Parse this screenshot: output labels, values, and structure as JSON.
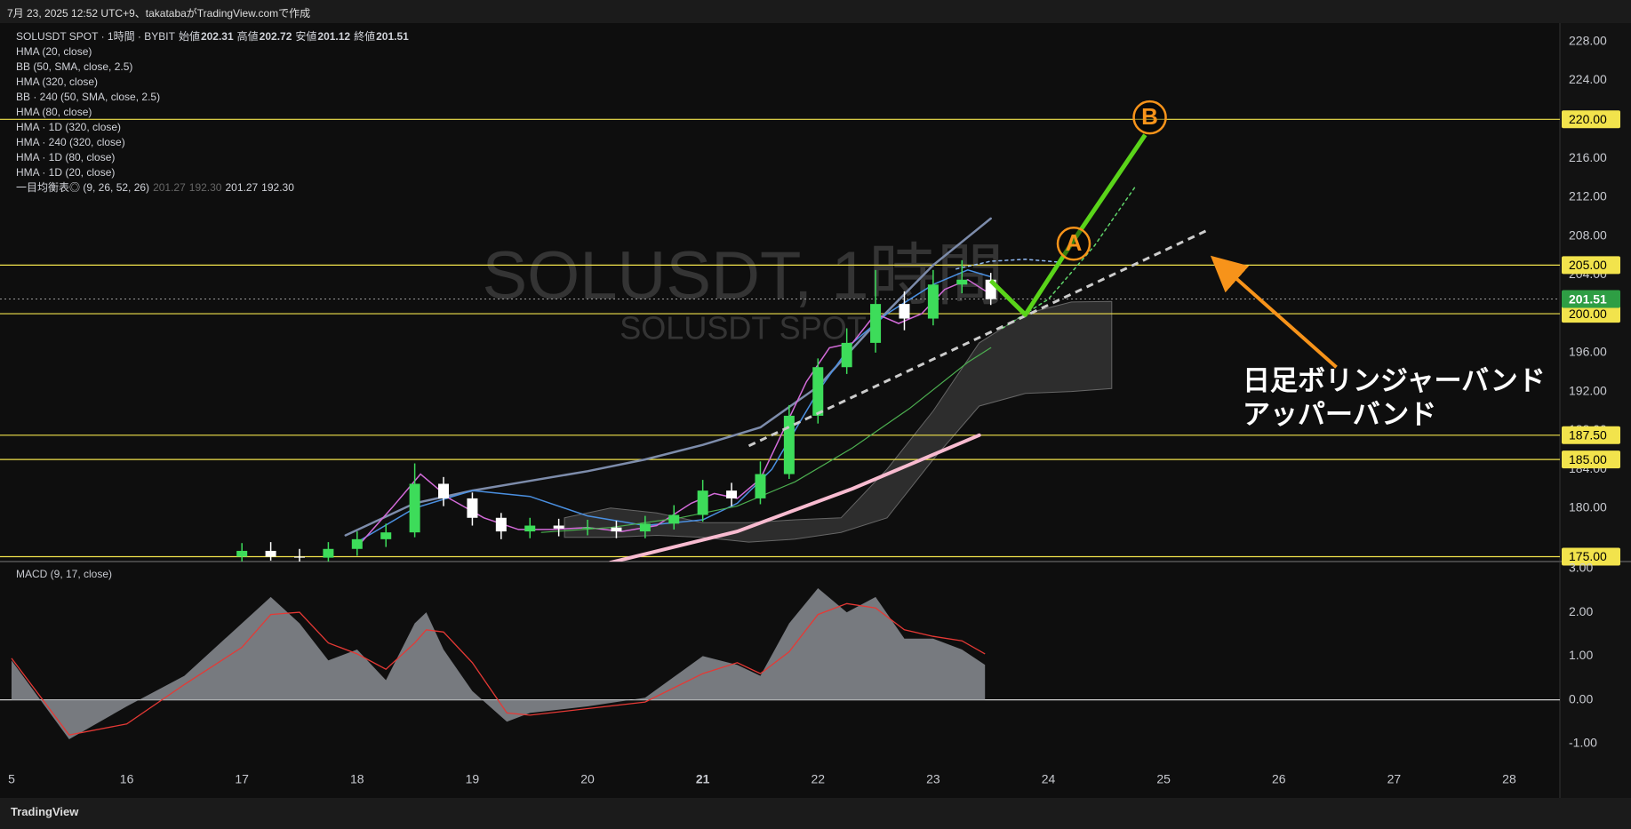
{
  "header": {
    "caption": "7月 23, 2025 12:52 UTC+9、takatabaがTradingView.comで作成",
    "symbol": "SOLUSDT SPOT · 1時間 · BYBIT",
    "ohlc": [
      {
        "label": "始値",
        "value": "202.31"
      },
      {
        "label": "高値",
        "value": "202.72"
      },
      {
        "label": "安値",
        "value": "201.12"
      },
      {
        "label": "終値",
        "value": "201.51"
      }
    ],
    "indicators": [
      "HMA (20, close)",
      "BB (50, SMA, close, 2.5)",
      "HMA (320, close)",
      "BB · 240 (50, SMA, close, 2.5)",
      "HMA (80, close)",
      "HMA · 1D (320, close)",
      "HMA · 240 (320, close)",
      "HMA · 1D (80, close)",
      "HMA · 1D (20, close)"
    ],
    "ichimoku": {
      "name": "一目均衡表◎ (9, 26, 52, 26)",
      "values": [
        "201.27",
        "192.30",
        "201.27",
        "192.30"
      ]
    },
    "brand": "TradingView"
  },
  "chart_data": [
    {
      "type": "candlestick",
      "watermark": "SOLUSDT, 1時間",
      "watermark_sub": "SOLUSDT SPOT",
      "x": [
        17,
        17.25,
        17.5,
        17.75,
        18,
        18.25,
        18.5,
        18.75,
        19,
        19.25,
        19.5,
        19.75,
        20,
        20.25,
        20.5,
        20.75,
        21,
        21.25,
        21.5,
        21.75,
        22,
        22.25,
        22.5,
        22.75,
        23,
        23.25,
        23.5
      ],
      "open": [
        175.0,
        175.6,
        175.0,
        174.9,
        175.8,
        176.8,
        177.5,
        182.5,
        181.0,
        179.0,
        177.6,
        178.2,
        177.9,
        178.0,
        177.6,
        178.4,
        179.3,
        181.8,
        181.0,
        183.5,
        189.5,
        194.5,
        197.0,
        201.0,
        199.5,
        203.0,
        203.5
      ],
      "high": [
        176.4,
        176.5,
        175.8,
        176.5,
        177.6,
        178.4,
        184.6,
        183.2,
        181.6,
        179.5,
        179.0,
        178.9,
        178.8,
        178.7,
        179.2,
        180.3,
        182.9,
        182.6,
        184.8,
        190.6,
        195.4,
        198.5,
        204.5,
        202.3,
        204.5,
        205.5,
        204.2
      ],
      "low": [
        174.3,
        174.6,
        174.0,
        174.2,
        175.1,
        176.0,
        177.0,
        180.2,
        178.2,
        176.8,
        176.9,
        177.1,
        177.2,
        176.9,
        176.9,
        177.8,
        178.6,
        180.2,
        180.4,
        183.0,
        188.7,
        193.8,
        196.0,
        198.3,
        198.8,
        202.1,
        200.9
      ],
      "close": [
        175.6,
        175.0,
        174.9,
        175.8,
        176.8,
        177.5,
        182.5,
        181.0,
        179.0,
        177.6,
        178.2,
        177.9,
        178.0,
        177.6,
        178.4,
        179.3,
        181.8,
        181.0,
        183.5,
        189.5,
        194.5,
        197.0,
        201.0,
        199.5,
        203.0,
        203.5,
        201.5
      ],
      "up_color": "#3ddc5a",
      "down_color": "#ffffff",
      "cloud": {
        "color": "#3a3a3a",
        "x": [
          19.8,
          20.2,
          20.6,
          21.0,
          21.4,
          21.8,
          22.2,
          22.6,
          23.0,
          23.4,
          23.8,
          24.2,
          24.55
        ],
        "upper": [
          179,
          180,
          179.5,
          178.5,
          178.5,
          178.8,
          179,
          184,
          190,
          197,
          200,
          201.2,
          201.27
        ],
        "lower": [
          177,
          177,
          177.2,
          177,
          176.5,
          176.8,
          177.5,
          179,
          185,
          190.5,
          191.8,
          192,
          192.3
        ]
      },
      "lines": [
        {
          "color": "#7d8cab",
          "width": 2.5,
          "x": [
            17.9,
            18.5,
            19,
            19.5,
            20,
            20.5,
            21,
            21.5,
            22,
            22.5,
            23,
            23.5
          ],
          "values": [
            177.2,
            180.5,
            181.8,
            182.8,
            183.8,
            185,
            186.5,
            188.3,
            192.5,
            199,
            205,
            209.8
          ]
        },
        {
          "color": "#4a8fe0",
          "width": 1.5,
          "x": [
            18.0,
            18.5,
            19,
            19.5,
            20,
            20.5,
            21,
            21.3,
            21.6,
            22,
            22.3,
            22.6,
            23,
            23.3,
            23.5
          ],
          "values": [
            176.5,
            180,
            181.8,
            181.2,
            179.2,
            178.2,
            178.8,
            180.5,
            184,
            192,
            197,
            200,
            203,
            204.5,
            203.8
          ]
        },
        {
          "color": "#d36bd9",
          "width": 1.5,
          "x": [
            18.0,
            18.3,
            18.55,
            18.8,
            19.1,
            19.4,
            19.7,
            20.0,
            20.3,
            20.6,
            20.9,
            21.1,
            21.3,
            21.5,
            21.7,
            21.9,
            22.1,
            22.3,
            22.5,
            22.7,
            22.9,
            23.1,
            23.3,
            23.5
          ],
          "values": [
            176,
            180,
            183.5,
            181,
            179,
            177.8,
            177.8,
            178,
            177.6,
            178.2,
            180.5,
            181.5,
            181,
            183,
            188,
            193,
            196.5,
            197,
            200,
            199,
            200,
            202.5,
            203.5,
            202
          ]
        },
        {
          "color": "#4caf50",
          "width": 1.2,
          "x": [
            19.6,
            20.2,
            20.8,
            21.3,
            21.8,
            22.3,
            22.8,
            23.3,
            23.5
          ],
          "values": [
            177.5,
            178,
            179,
            180.2,
            182.7,
            186.2,
            190.3,
            195,
            196.5
          ]
        },
        {
          "color": "#f8bbd0",
          "width": 4,
          "x": [
            20.2,
            21.3,
            22.3,
            23.4
          ],
          "values": [
            174.4,
            177.6,
            182,
            187.5
          ]
        },
        {
          "color": "#8fb8f0",
          "width": 1.5,
          "dashed": true,
          "x": [
            23.2,
            23.5,
            23.8,
            24.1
          ],
          "values": [
            204.6,
            205.4,
            205.6,
            205.3
          ]
        },
        {
          "color": "#5fd46a",
          "width": 1.5,
          "dashed": true,
          "x": [
            23.6,
            24.0,
            24.4,
            24.75
          ],
          "values": [
            198.5,
            201.5,
            207,
            213
          ]
        }
      ],
      "levels": [
        {
          "value": 175,
          "label": "175.00"
        },
        {
          "value": 185,
          "label": "185.00"
        },
        {
          "value": 187.5,
          "label": "187.50"
        },
        {
          "value": 200,
          "label": "200.00"
        },
        {
          "value": 205,
          "label": "205.00"
        },
        {
          "value": 220,
          "label": "220.00"
        }
      ],
      "level_color": "#f2e34c",
      "last_price": {
        "value": 201.51,
        "label": "201.51"
      },
      "last_color": "#2e9e44",
      "drawings": {
        "projection": {
          "color": "#5ad41a",
          "x": [
            23.5,
            23.8,
            24.2,
            24.84
          ],
          "y": [
            203.4,
            199.9,
            207.2,
            218.4
          ]
        },
        "trendline": {
          "color": "#cccccc",
          "x": [
            21.4,
            25.4
          ],
          "y": [
            186.4,
            208.7
          ]
        },
        "arrow": {
          "color": "#f7931a",
          "x": [
            26.5,
            25.5
          ],
          "y": [
            194.5,
            205
          ]
        },
        "markers": [
          {
            "label": "A",
            "x": 24.22,
            "y": 207.2
          },
          {
            "label": "B",
            "x": 24.88,
            "y": 220.2
          }
        ],
        "note": [
          "日足ボリンジャーバンド",
          "アッパーバンド"
        ]
      },
      "xlim": [
        14.9,
        28.44
      ],
      "xticks": [
        {
          "value": 15,
          "label": "5"
        },
        16,
        17,
        18,
        19,
        20,
        21,
        22,
        23,
        24,
        25,
        26,
        27,
        28
      ],
      "ylim": [
        174.5,
        229.9
      ],
      "yticks": [
        {
          "value": 180,
          "label": "180.00"
        },
        {
          "value": 184,
          "label": "184.00"
        },
        {
          "value": 188,
          "label": "188.00"
        },
        {
          "value": 192,
          "label": "192.00"
        },
        {
          "value": 196,
          "label": "196.00"
        },
        {
          "value": 200,
          "label": "200.00"
        },
        {
          "value": 204,
          "label": "204.00"
        },
        {
          "value": 208,
          "label": "208.00"
        },
        {
          "value": 212,
          "label": "212.00"
        },
        {
          "value": 216,
          "label": "216.00"
        },
        {
          "value": 220,
          "label": "220.00"
        },
        {
          "value": 224,
          "label": "224.00"
        },
        {
          "value": 228,
          "label": "228.00"
        }
      ]
    },
    {
      "type": "macd",
      "title": "MACD (9, 17, close)",
      "zero_line": true,
      "series": [
        {
          "style": "area",
          "color": "#8a8d93",
          "x": [
            15,
            15.5,
            16,
            16.5,
            17,
            17.25,
            17.5,
            17.75,
            18,
            18.25,
            18.5,
            18.6,
            18.75,
            19,
            19.3,
            19.5,
            20,
            20.5,
            21,
            21.3,
            21.5,
            21.75,
            22,
            22.25,
            22.5,
            22.75,
            23,
            23.25,
            23.45
          ],
          "values": [
            0.9,
            -0.9,
            -0.15,
            0.55,
            1.75,
            2.35,
            1.75,
            0.9,
            1.15,
            0.45,
            1.75,
            2.0,
            1.15,
            0.2,
            -0.5,
            -0.3,
            -0.15,
            0.05,
            1.0,
            0.8,
            0.55,
            1.75,
            2.55,
            2.0,
            2.35,
            1.4,
            1.4,
            1.15,
            0.8
          ]
        },
        {
          "style": "line",
          "color": "#e53935",
          "x": [
            15,
            15.5,
            16,
            16.5,
            17,
            17.25,
            17.5,
            17.75,
            18,
            18.25,
            18.5,
            18.6,
            18.75,
            19,
            19.3,
            19.5,
            20,
            20.5,
            21,
            21.3,
            21.5,
            21.75,
            22,
            22.25,
            22.5,
            22.75,
            23,
            23.25,
            23.45
          ],
          "values": [
            0.95,
            -0.8,
            -0.55,
            0.35,
            1.2,
            1.95,
            2.0,
            1.3,
            1.05,
            0.7,
            1.3,
            1.6,
            1.55,
            0.85,
            -0.3,
            -0.35,
            -0.2,
            -0.05,
            0.6,
            0.85,
            0.6,
            1.1,
            1.95,
            2.2,
            2.1,
            1.6,
            1.45,
            1.35,
            1.05
          ]
        }
      ],
      "xlim": [
        14.9,
        28.44
      ],
      "ylim": [
        -2.24,
        3.16
      ],
      "yticks": [
        {
          "value": -1,
          "label": "-1.00"
        },
        {
          "value": 0,
          "label": "0.00"
        },
        {
          "value": 1,
          "label": "1.00"
        },
        {
          "value": 2,
          "label": "2.00"
        },
        {
          "value": 3,
          "label": "3.00"
        }
      ]
    }
  ]
}
